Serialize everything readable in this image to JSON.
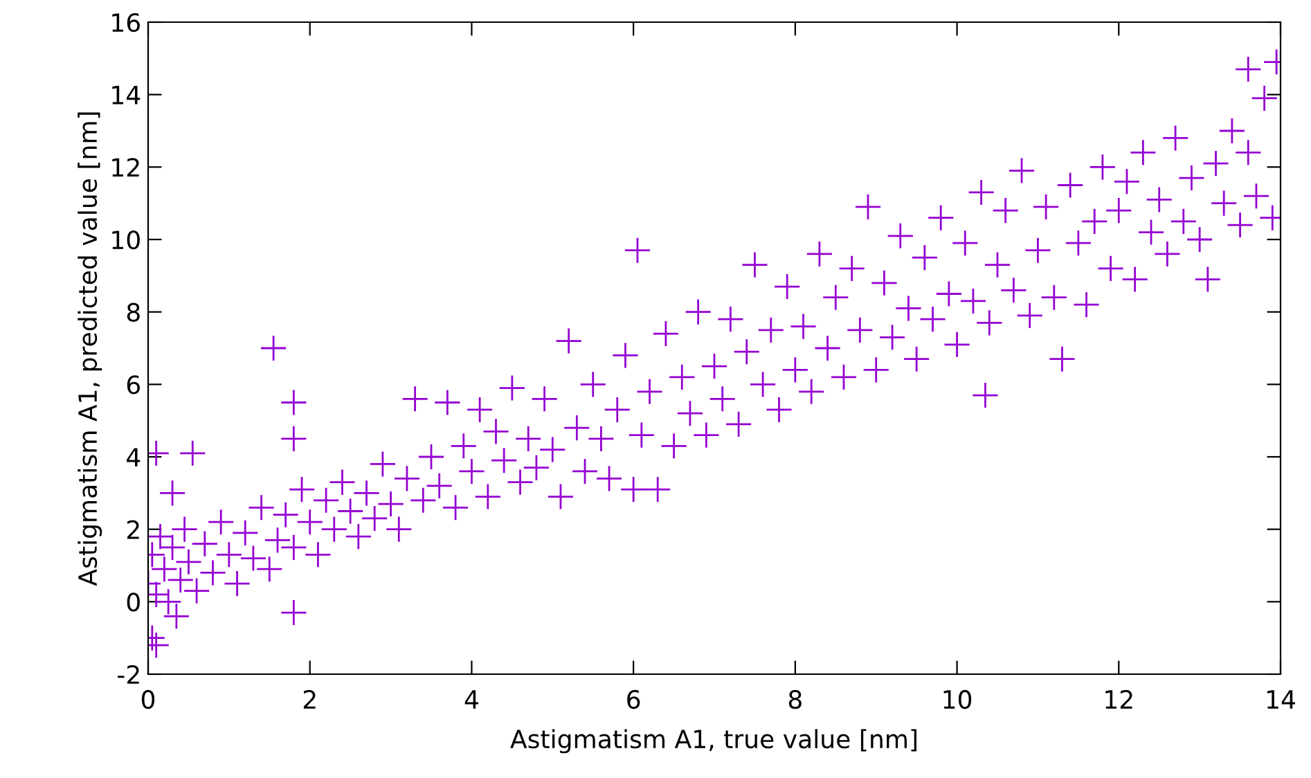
{
  "chart_data": {
    "type": "scatter",
    "xlabel": "Astigmatism A1, true value [nm]",
    "ylabel": "Astigmatism A1, predicted value [nm]",
    "xlim": [
      0,
      14
    ],
    "ylim": [
      -2,
      16
    ],
    "xticks": [
      0,
      2,
      4,
      6,
      8,
      10,
      12,
      14
    ],
    "yticks": [
      -2,
      0,
      2,
      4,
      6,
      8,
      10,
      12,
      14,
      16
    ],
    "marker": "cross",
    "grid": false,
    "series": [
      {
        "color": "#9400d3",
        "x": [
          0.0,
          0.05,
          0.1,
          0.15,
          0.2,
          0.25,
          0.3,
          0.4,
          0.45,
          0.5,
          0.6,
          0.7,
          0.8,
          0.9,
          1.0,
          1.1,
          1.2,
          1.3,
          1.4,
          1.5,
          1.6,
          1.7,
          1.8,
          1.9,
          2.0,
          2.1,
          2.2,
          2.3,
          2.4,
          2.5,
          2.6,
          2.7,
          2.8,
          2.9,
          3.0,
          3.1,
          3.2,
          3.3,
          3.4,
          3.5,
          3.6,
          3.7,
          3.8,
          3.9,
          4.0,
          4.1,
          4.2,
          4.3,
          4.4,
          4.5,
          4.6,
          4.7,
          4.8,
          4.9,
          5.0,
          5.1,
          5.3,
          5.4,
          5.5,
          5.6,
          5.7,
          5.8,
          5.9,
          6.1,
          6.2,
          6.4,
          6.5,
          6.6,
          6.7,
          6.8,
          6.9,
          7.0,
          7.1,
          7.2,
          7.3,
          7.4,
          7.5,
          7.6,
          7.7,
          7.8,
          7.9,
          8.0,
          8.1,
          8.2,
          8.3,
          8.4,
          8.5,
          8.6,
          8.7,
          8.8,
          8.9,
          9.0,
          9.1,
          9.2,
          9.3,
          9.4,
          9.5,
          9.6,
          9.7,
          9.8,
          9.9,
          10.0,
          10.1,
          10.2,
          10.3,
          10.4,
          10.5,
          10.6,
          10.7,
          10.8,
          10.9,
          11.0,
          11.1,
          11.2,
          11.4,
          11.5,
          11.6,
          11.7,
          11.8,
          11.9,
          12.0,
          12.1,
          12.2,
          12.3,
          12.4,
          12.5,
          12.6,
          12.7,
          12.8,
          12.9,
          13.0,
          13.2,
          13.3,
          13.4,
          13.5,
          13.6,
          13.7,
          13.8,
          13.9,
          13.95,
          1.55,
          1.8,
          1.8,
          0.1,
          0.55,
          0.3,
          0.05,
          0.1,
          1.8,
          6.05,
          10.35,
          11.3,
          13.6,
          13.1,
          5.2,
          0.35,
          6.0,
          6.3
        ],
        "values": [
          0.5,
          1.3,
          0.2,
          1.8,
          0.9,
          0.0,
          1.5,
          0.6,
          2.0,
          1.1,
          0.3,
          1.6,
          0.8,
          2.2,
          1.3,
          0.5,
          1.9,
          1.2,
          2.6,
          0.9,
          1.7,
          2.4,
          1.5,
          3.1,
          2.2,
          1.3,
          2.8,
          2.0,
          3.3,
          2.5,
          1.8,
          3.0,
          2.3,
          3.8,
          2.7,
          2.0,
          3.4,
          5.6,
          2.8,
          4.0,
          3.2,
          5.5,
          2.6,
          4.3,
          3.6,
          5.3,
          2.9,
          4.7,
          3.9,
          5.9,
          3.3,
          4.5,
          3.7,
          5.6,
          4.2,
          2.9,
          4.8,
          3.6,
          6.0,
          4.5,
          3.4,
          5.3,
          6.8,
          4.6,
          5.8,
          7.4,
          4.3,
          6.2,
          5.2,
          8.0,
          4.6,
          6.5,
          5.6,
          7.8,
          4.9,
          6.9,
          9.3,
          6.0,
          7.5,
          5.3,
          8.7,
          6.4,
          7.6,
          5.8,
          9.6,
          7.0,
          8.4,
          6.2,
          9.2,
          7.5,
          10.9,
          6.4,
          8.8,
          7.3,
          10.1,
          8.1,
          6.7,
          9.5,
          7.8,
          10.6,
          8.5,
          7.1,
          9.9,
          8.3,
          11.3,
          7.7,
          9.3,
          10.8,
          8.6,
          11.9,
          7.9,
          9.7,
          10.9,
          8.4,
          11.5,
          9.9,
          8.2,
          10.5,
          12.0,
          9.2,
          10.8,
          11.6,
          8.9,
          12.4,
          10.2,
          11.1,
          9.6,
          12.8,
          10.5,
          11.7,
          10.0,
          12.1,
          11.0,
          13.0,
          10.4,
          12.4,
          11.2,
          13.9,
          10.6,
          14.9,
          7.0,
          5.5,
          4.5,
          4.1,
          4.1,
          3.0,
          -1.0,
          -1.2,
          -0.3,
          9.7,
          5.7,
          6.7,
          14.7,
          8.9,
          7.2,
          -0.4,
          3.1,
          3.1
        ]
      }
    ]
  }
}
